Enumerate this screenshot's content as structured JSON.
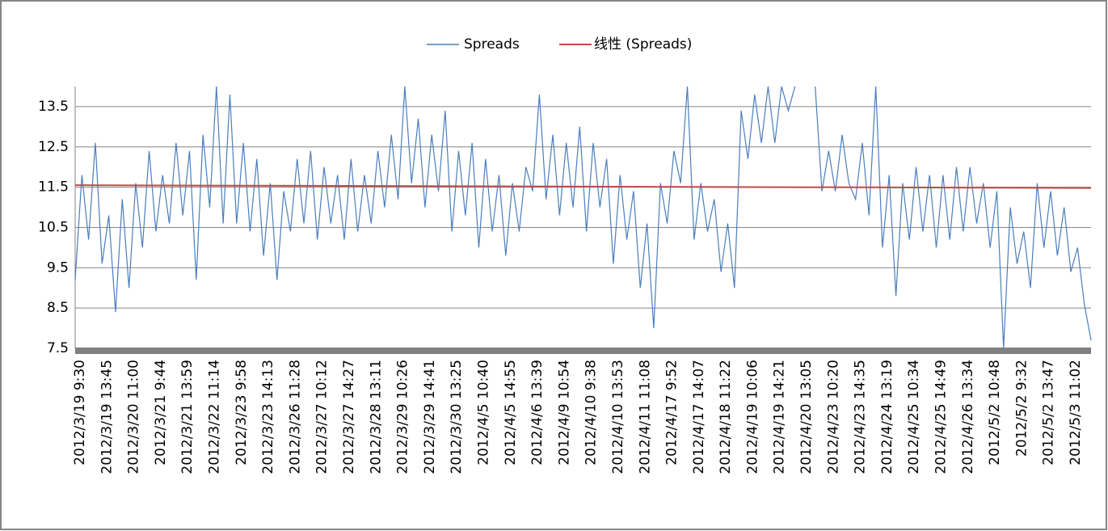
{
  "chart_data": {
    "type": "line",
    "categories": [
      "2012/3/19 9:30",
      null,
      null,
      null,
      "2012/3/19 13:45",
      null,
      null,
      null,
      "2012/3/20 11:00",
      null,
      null,
      null,
      "2012/3/21 9:44",
      null,
      null,
      null,
      "2012/3/21 13:59",
      null,
      null,
      null,
      "2012/3/22 11:14",
      null,
      null,
      null,
      "2012/3/23 9:58",
      null,
      null,
      null,
      "2012/3/23 14:13",
      null,
      null,
      null,
      "2012/3/26 11:28",
      null,
      null,
      null,
      "2012/3/27 10:12",
      null,
      null,
      null,
      "2012/3/27 14:27",
      null,
      null,
      null,
      "2012/3/28 13:11",
      null,
      null,
      null,
      "2012/3/29 10:26",
      null,
      null,
      null,
      "2012/3/29 14:41",
      null,
      null,
      null,
      "2012/3/30 13:25",
      null,
      null,
      null,
      "2012/4/5 10:40",
      null,
      null,
      null,
      "2012/4/5 14:55",
      null,
      null,
      null,
      "2012/4/6 13:39",
      null,
      null,
      null,
      "2012/4/9 10:54",
      null,
      null,
      null,
      "2012/4/10 9:38",
      null,
      null,
      null,
      "2012/4/10 13:53",
      null,
      null,
      null,
      "2012/4/11 11:08",
      null,
      null,
      null,
      "2012/4/17 9:52",
      null,
      null,
      null,
      "2012/4/17 14:07",
      null,
      null,
      null,
      "2012/4/18 11:22",
      null,
      null,
      null,
      "2012/4/19 10:06",
      null,
      null,
      null,
      "2012/4/19 14:21",
      null,
      null,
      null,
      "2012/4/20 13:05",
      null,
      null,
      null,
      "2012/4/23 10:20",
      null,
      null,
      null,
      "2012/4/23 14:35",
      null,
      null,
      null,
      "2012/4/24 13:19",
      null,
      null,
      null,
      "2012/4/25 10:34",
      null,
      null,
      null,
      "2012/4/25 14:49",
      null,
      null,
      null,
      "2012/4/26 13:34",
      null,
      null,
      null,
      "2012/5/2 10:48",
      null,
      null,
      null,
      "2012/5/2 9:32",
      null,
      null,
      null,
      "2012/5/2 13:47",
      null,
      null,
      null,
      "2012/5/3 11:02",
      null,
      null,
      null
    ],
    "series": [
      {
        "name": "Spreads",
        "color": "#4a7ebb",
        "values": [
          9.2,
          11.8,
          10.2,
          12.6,
          9.6,
          10.8,
          8.4,
          11.2,
          9.0,
          11.6,
          10.0,
          12.4,
          10.4,
          11.8,
          10.6,
          12.6,
          10.8,
          12.4,
          9.2,
          12.8,
          11.0,
          14.0,
          10.6,
          13.8,
          10.6,
          12.6,
          10.4,
          12.2,
          9.8,
          11.6,
          9.2,
          11.4,
          10.4,
          12.2,
          10.6,
          12.4,
          10.2,
          12.0,
          10.6,
          11.8,
          10.2,
          12.2,
          10.4,
          11.8,
          10.6,
          12.4,
          11.0,
          12.8,
          11.2,
          14.0,
          11.6,
          13.2,
          11.0,
          12.8,
          11.4,
          13.4,
          10.4,
          12.4,
          10.8,
          12.6,
          10.0,
          12.2,
          10.4,
          11.8,
          9.8,
          11.6,
          10.4,
          12.0,
          11.4,
          13.8,
          11.2,
          12.8,
          10.8,
          12.6,
          11.0,
          13.0,
          10.4,
          12.6,
          11.0,
          12.2,
          9.6,
          11.8,
          10.2,
          11.4,
          9.0,
          10.6,
          8.0,
          11.6,
          10.6,
          12.4,
          11.6,
          14.0,
          10.2,
          11.6,
          10.4,
          11.2,
          9.4,
          10.6,
          9.0,
          13.4,
          12.2,
          13.8,
          12.6,
          14.0,
          12.6,
          14.0,
          13.4,
          14.0,
          null,
          null,
          14.0,
          11.4,
          12.4,
          11.4,
          12.8,
          11.6,
          11.2,
          12.6,
          10.8,
          14.0,
          10.0,
          11.8,
          8.8,
          11.6,
          10.2,
          12.0,
          10.4,
          11.8,
          10.0,
          11.8,
          10.2,
          12.0,
          10.4,
          12.0,
          10.6,
          11.6,
          10.0,
          11.4,
          7.5,
          11.0,
          9.6,
          10.4,
          9.0,
          11.6,
          10.0,
          11.4,
          9.8,
          11.0,
          9.4,
          10.0,
          8.6,
          7.7
        ]
      }
    ],
    "trendline": {
      "name": "线性 (Spreads)",
      "color": "#be4b48",
      "from": 11.55,
      "to": 11.48
    },
    "ylim": [
      7.5,
      14
    ],
    "yticks": [
      7.5,
      8.5,
      9.5,
      10.5,
      11.5,
      12.5,
      13.5
    ],
    "grid": true
  }
}
